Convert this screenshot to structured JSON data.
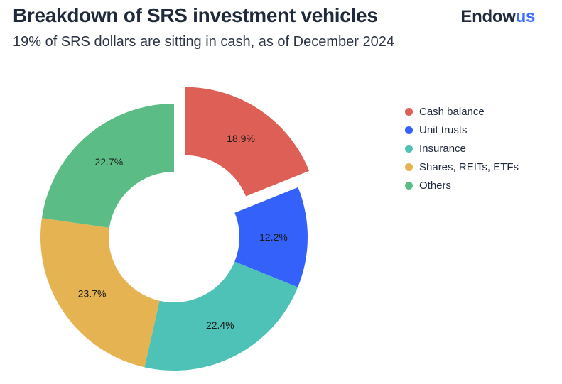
{
  "brand": {
    "name_main": "Endow",
    "name_accent": "us",
    "accent_color": "#3b6bff"
  },
  "chart_data": {
    "type": "pie",
    "title": "Breakdown of SRS investment vehicles",
    "subtitle": "19% of SRS dollars are sitting in cash, as of December 2024",
    "donut": true,
    "exploded": "Cash balance",
    "legend_position": "right",
    "slices": [
      {
        "label": "Cash balance",
        "value": 18.9,
        "display": "18.9%",
        "color": "#dd5f55"
      },
      {
        "label": "Unit trusts",
        "value": 12.2,
        "display": "12.2%",
        "color": "#3461f9"
      },
      {
        "label": "Insurance",
        "value": 22.4,
        "display": "22.4%",
        "color": "#4ec2b6"
      },
      {
        "label": "Shares, REITs, ETFs",
        "value": 23.7,
        "display": "23.7%",
        "color": "#e6b352"
      },
      {
        "label": "Others",
        "value": 22.7,
        "display": "22.7%",
        "color": "#5bbd85"
      }
    ]
  }
}
